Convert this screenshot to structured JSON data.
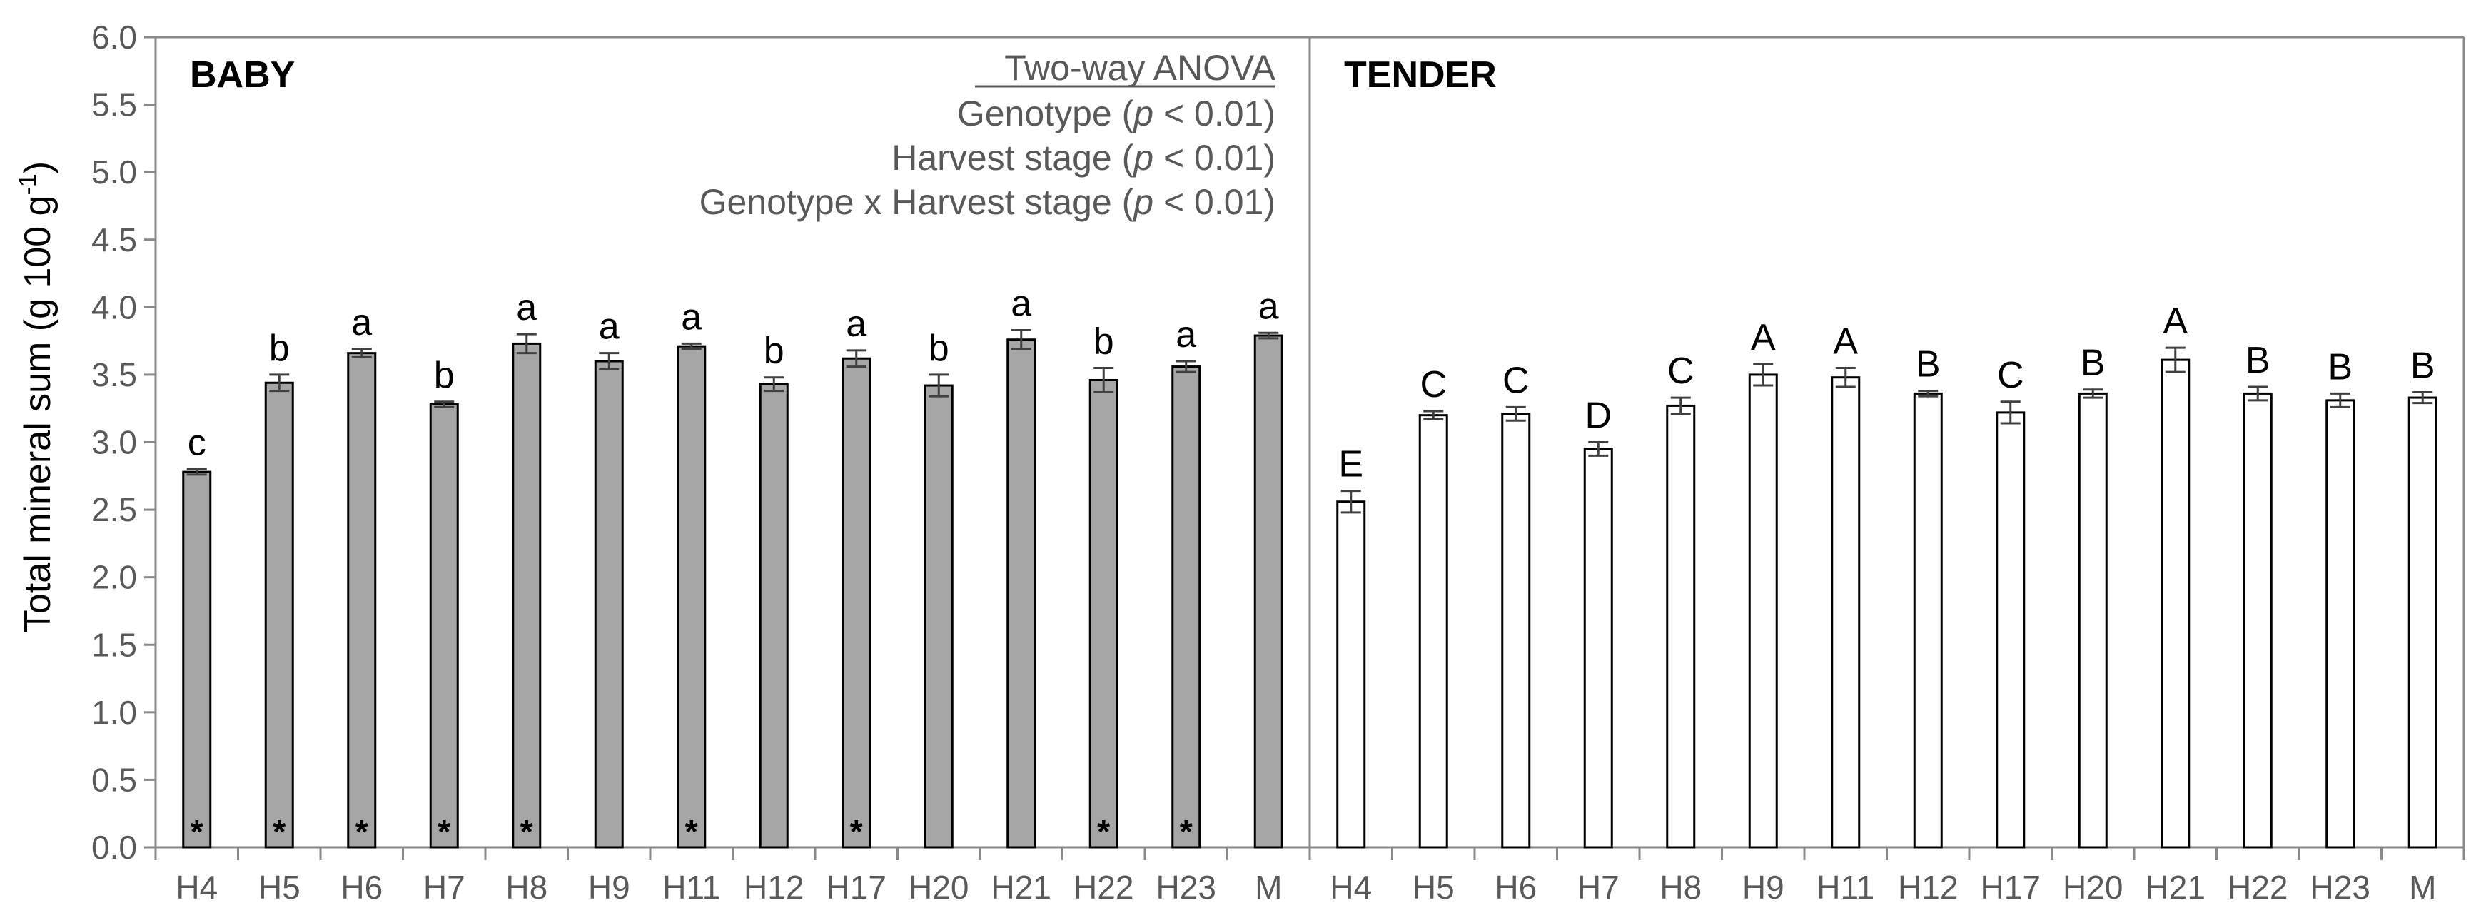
{
  "chart_data": {
    "type": "bar",
    "ylabel": "Total mineral sum (g 100 g",
    "ylabel_sup": "-1",
    "ylabel_close": ")",
    "ylim": [
      0,
      6
    ],
    "yticks": [
      "0.0",
      "0.5",
      "1.0",
      "1.5",
      "2.0",
      "2.5",
      "3.0",
      "3.5",
      "4.0",
      "4.5",
      "5.0",
      "5.5",
      "6.0"
    ],
    "grid": false,
    "annotation": {
      "header": "Two-way ANOVA",
      "lines": [
        {
          "prefix": "Genotype (",
          "p": "p",
          "suffix": " < 0.01)"
        },
        {
          "prefix": "Harvest stage (",
          "p": "p",
          "suffix": " < 0.01)"
        },
        {
          "prefix": "Genotype x Harvest stage (",
          "p": "p",
          "suffix": " < 0.01)"
        }
      ]
    },
    "panels": [
      {
        "title": "BABY",
        "fill": "#a6a6a6",
        "categories": [
          "H4",
          "H5",
          "H6",
          "H7",
          "H8",
          "H9",
          "H11",
          "H12",
          "H17",
          "H20",
          "H21",
          "H22",
          "H23",
          "M"
        ],
        "values": [
          2.78,
          3.44,
          3.66,
          3.28,
          3.73,
          3.6,
          3.71,
          3.43,
          3.62,
          3.42,
          3.76,
          3.46,
          3.56,
          3.79
        ],
        "errors": [
          0.02,
          0.06,
          0.03,
          0.02,
          0.07,
          0.06,
          0.02,
          0.05,
          0.06,
          0.08,
          0.07,
          0.09,
          0.04,
          0.02
        ],
        "letters": [
          "c",
          "b",
          "a",
          "b",
          "a",
          "a",
          "a",
          "b",
          "a",
          "b",
          "a",
          "b",
          "a",
          "a"
        ],
        "stars": [
          true,
          true,
          true,
          true,
          true,
          false,
          true,
          false,
          true,
          false,
          false,
          true,
          true,
          false
        ],
        "star_symbol": "*"
      },
      {
        "title": "TENDER",
        "fill": "#ffffff",
        "categories": [
          "H4",
          "H5",
          "H6",
          "H7",
          "H8",
          "H9",
          "H11",
          "H12",
          "H17",
          "H20",
          "H21",
          "H22",
          "H23",
          "M"
        ],
        "values": [
          2.56,
          3.2,
          3.21,
          2.95,
          3.27,
          3.5,
          3.48,
          3.36,
          3.22,
          3.36,
          3.61,
          3.36,
          3.31,
          3.33
        ],
        "errors": [
          0.08,
          0.03,
          0.05,
          0.05,
          0.06,
          0.08,
          0.07,
          0.02,
          0.08,
          0.03,
          0.09,
          0.05,
          0.05,
          0.04
        ],
        "letters": [
          "E",
          "C",
          "C",
          "D",
          "C",
          "A",
          "A",
          "B",
          "C",
          "B",
          "A",
          "B",
          "B",
          "B"
        ]
      }
    ]
  }
}
